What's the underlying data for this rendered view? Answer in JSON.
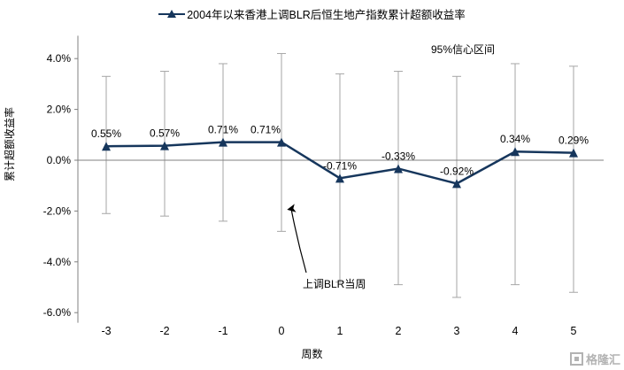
{
  "watermark": {
    "text": "格隆汇"
  },
  "chart_data": {
    "type": "line",
    "legend": "2004年以来香港上调BLR后恒生地产指数累计超额收益率",
    "title": "2004年以来香港上调BLR后恒生地产指数累计超额收益率",
    "xlabel": "周数",
    "ylabel": "累计超额收益率",
    "categories": [
      "-3",
      "-2",
      "-1",
      "0",
      "1",
      "2",
      "3",
      "4",
      "5"
    ],
    "values": [
      0.55,
      0.57,
      0.71,
      0.71,
      -0.71,
      -0.33,
      -0.92,
      0.34,
      0.29
    ],
    "point_labels": [
      "0.55%",
      "0.57%",
      "0.71%",
      "0.71%",
      "-0.71%",
      "-0.33%",
      "-0.92%",
      "0.34%",
      "0.29%"
    ],
    "error_high": [
      3.3,
      3.5,
      3.8,
      4.2,
      3.4,
      3.5,
      3.3,
      3.8,
      3.7
    ],
    "error_low": [
      -2.1,
      -2.2,
      -2.4,
      -2.8,
      -4.8,
      -4.9,
      -5.4,
      -4.9,
      -5.2
    ],
    "ytick_labels": [
      "4.0%",
      "2.0%",
      "0.0%",
      "-2.0%",
      "-4.0%",
      "-6.0%"
    ],
    "ytick_values": [
      4,
      2,
      0,
      -2,
      -4,
      -6
    ],
    "ylim": [
      -6.4,
      4.9
    ],
    "grid": "off",
    "legend_position": "top",
    "annotations": {
      "ci": "95%信心区间",
      "event": "上调BLR当周"
    },
    "colors": {
      "line": "#16365C",
      "error_bar": "#a6a6a6",
      "axis": "#808080",
      "text": "#000000"
    }
  }
}
